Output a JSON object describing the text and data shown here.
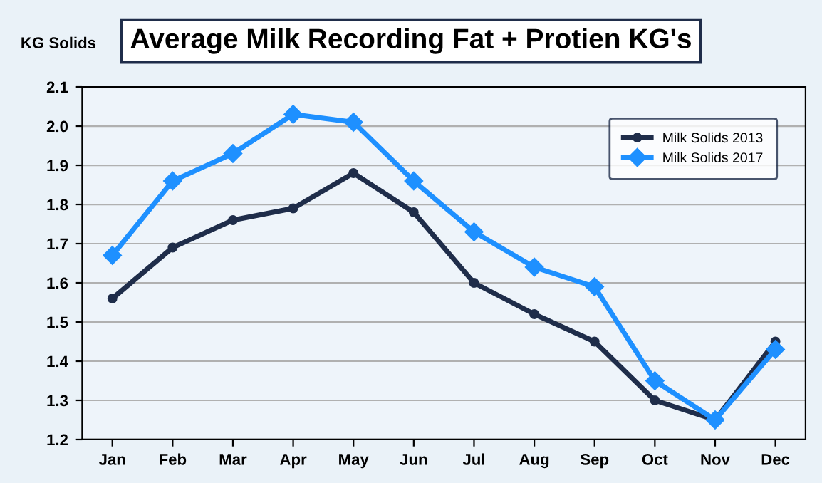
{
  "chart_data": {
    "type": "line",
    "title": "Average Milk Recording Fat + Protien KG's",
    "ylabel": "KG Solids",
    "categories": [
      "Jan",
      "Feb",
      "Mar",
      "Apr",
      "May",
      "Jun",
      "Jul",
      "Aug",
      "Sep",
      "Oct",
      "Nov",
      "Dec"
    ],
    "series": [
      {
        "name": "Milk Solids 2013",
        "color": "#1f2d4a",
        "marker": "circle",
        "values": [
          1.56,
          1.69,
          1.76,
          1.79,
          1.88,
          1.78,
          1.6,
          1.52,
          1.45,
          1.3,
          1.25,
          1.45
        ]
      },
      {
        "name": "Milk Solids 2017",
        "color": "#1e90ff",
        "marker": "diamond",
        "values": [
          1.67,
          1.86,
          1.93,
          2.03,
          2.01,
          1.86,
          1.73,
          1.64,
          1.59,
          1.35,
          1.25,
          1.43
        ]
      }
    ],
    "ylim": [
      1.2,
      2.1
    ],
    "yticks": [
      1.2,
      1.3,
      1.4,
      1.5,
      1.6,
      1.7,
      1.8,
      1.9,
      {
        "value": 2.0,
        "label": "2.0"
      },
      2.1
    ],
    "grid": "y",
    "legend": "top right",
    "line_style": "solid"
  }
}
